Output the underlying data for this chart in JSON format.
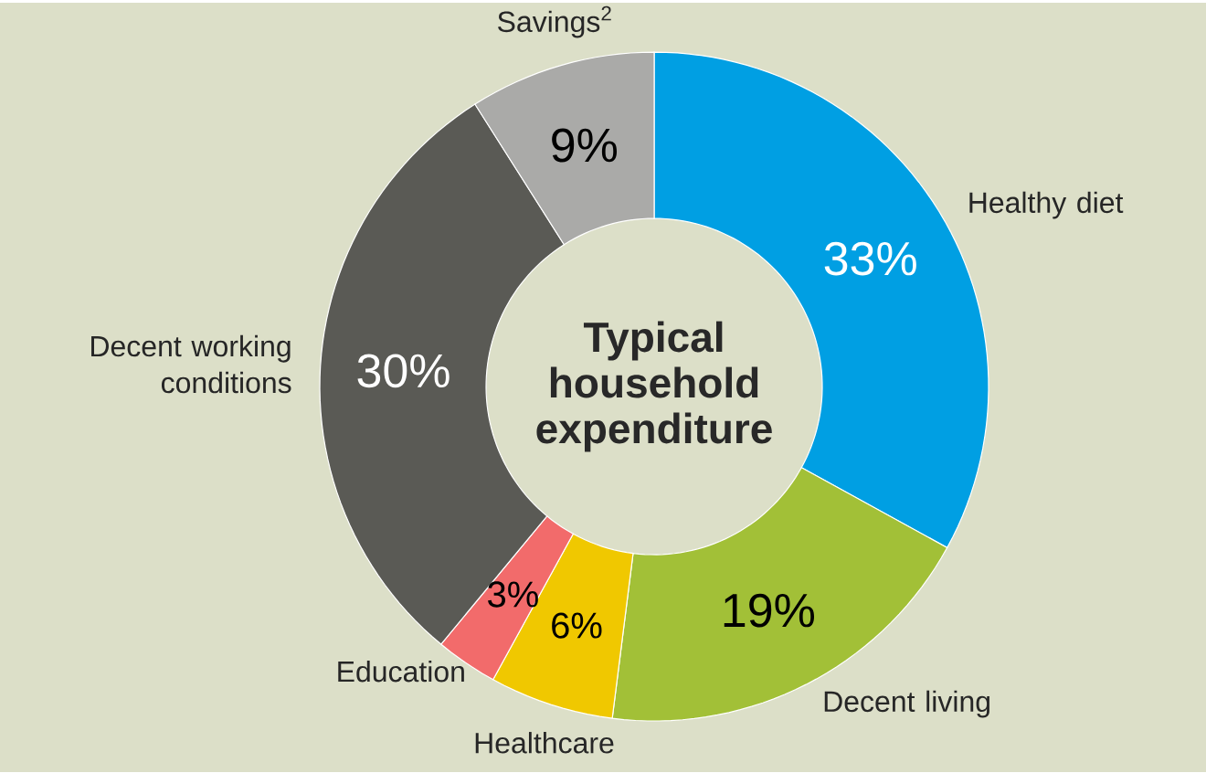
{
  "chart_data": {
    "type": "donut",
    "title": "Typical household expenditure",
    "categories": [
      "Healthy diet",
      "Decent living",
      "Healthcare",
      "Education",
      "Decent working conditions",
      "Savings$^{2}$"
    ],
    "values": [
      33,
      19,
      6,
      3,
      30,
      9
    ],
    "value_labels": [
      "33%",
      "19%",
      "6%",
      "3%",
      "30%",
      "9%"
    ],
    "colors": [
      "#009fe3",
      "#a2c037",
      "#f0c800",
      "#f26b6b",
      "#5a5a55",
      "#aaaaa8"
    ],
    "legend": false
  }
}
